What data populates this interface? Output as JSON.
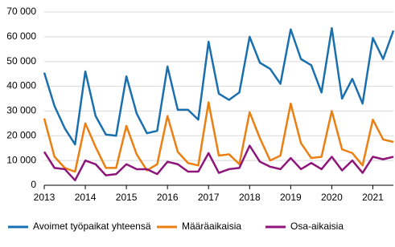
{
  "chart_data": {
    "type": "line",
    "categories": [
      "2013",
      null,
      null,
      null,
      "2014",
      null,
      null,
      null,
      "2015",
      null,
      null,
      null,
      "2016",
      null,
      null,
      null,
      "2017",
      null,
      null,
      null,
      "2018",
      null,
      null,
      null,
      "2019",
      null,
      null,
      null,
      "2020",
      null,
      null,
      null,
      "2021",
      null,
      null
    ],
    "series": [
      {
        "name": "Avoimet työpaikat yhteensä",
        "color": "#1a6fae",
        "values": [
          45500,
          32000,
          23000,
          16500,
          46000,
          28000,
          20500,
          20000,
          44000,
          29000,
          21000,
          22000,
          48000,
          30500,
          30500,
          26500,
          58000,
          37000,
          34500,
          37500,
          60000,
          49500,
          47000,
          41000,
          63000,
          51000,
          48500,
          37500,
          63500,
          35000,
          43000,
          33000,
          59500,
          51000,
          62500
        ]
      },
      {
        "name": "Määräaikaisia",
        "color": "#ec7f12",
        "values": [
          27000,
          11500,
          7000,
          5500,
          25000,
          15500,
          7000,
          7000,
          24000,
          12500,
          6000,
          8500,
          28000,
          13500,
          9000,
          8000,
          33500,
          12000,
          12500,
          8500,
          29500,
          19000,
          10000,
          12000,
          33000,
          17000,
          11000,
          11500,
          30000,
          14500,
          13000,
          8000,
          26500,
          18500,
          17500
        ]
      },
      {
        "name": "Osa-aikaisia",
        "color": "#8e1579",
        "values": [
          13500,
          7000,
          6500,
          2000,
          10000,
          8500,
          4000,
          4500,
          8500,
          6500,
          6500,
          4500,
          9500,
          8500,
          5500,
          5500,
          13000,
          5000,
          6500,
          7000,
          16000,
          9500,
          7500,
          6500,
          11000,
          6500,
          9000,
          6500,
          11500,
          6000,
          10000,
          5000,
          11500,
          10500,
          11500
        ]
      }
    ],
    "ylim": [
      0,
      70000
    ],
    "yticks": [
      0,
      {
        "value": 10000,
        "label": "10 000"
      },
      {
        "value": 20000,
        "label": "20 000"
      },
      {
        "value": 30000,
        "label": "30 000"
      },
      {
        "value": 40000,
        "label": "40 000"
      },
      {
        "value": 50000,
        "label": "50 000"
      },
      {
        "value": 60000,
        "label": "60 000"
      },
      {
        "value": 70000,
        "label": "70 000"
      }
    ],
    "grid": true,
    "legend": "bottom"
  }
}
